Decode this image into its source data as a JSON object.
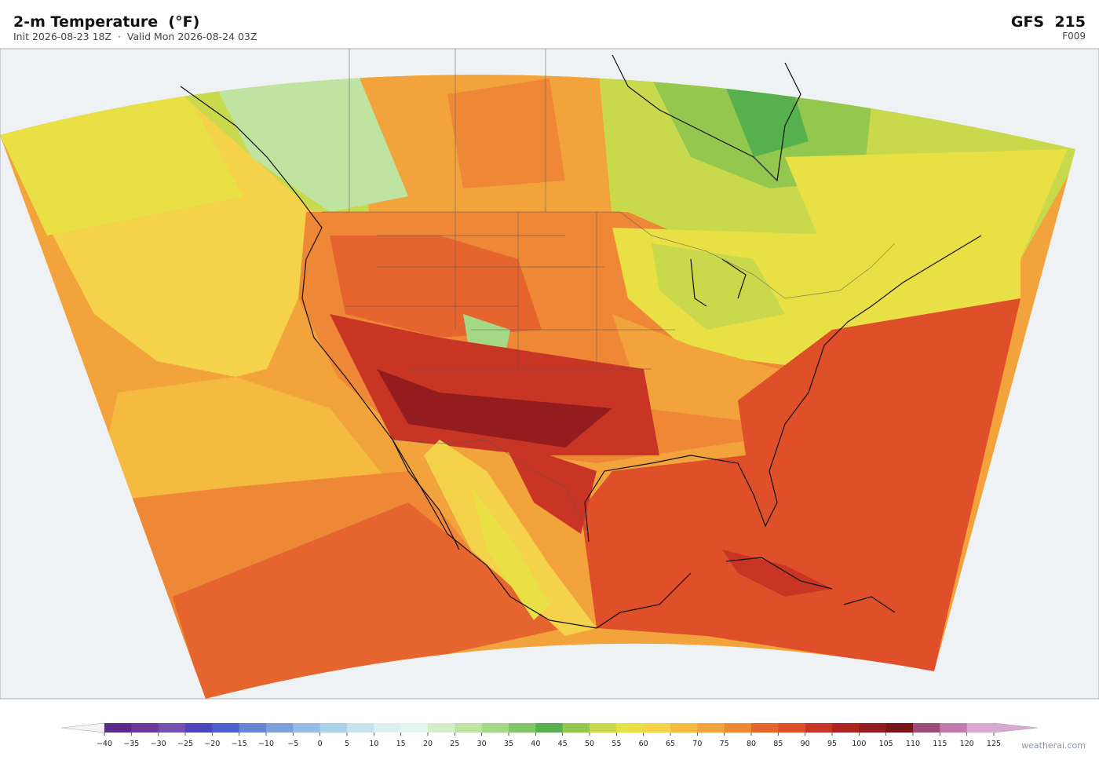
{
  "header": {
    "title": "2-m Temperature  (°F)",
    "subtitle": "Init 2026-08-23 18Z  ·  Valid Mon 2026-08-24 03Z",
    "model": "GFS  215",
    "forecast_hour": "F009"
  },
  "colorbar": {
    "ticks": [
      {
        "value": -40,
        "label": "−40"
      },
      {
        "value": -35,
        "label": "−35"
      },
      {
        "value": -30,
        "label": "−30"
      },
      {
        "value": -25,
        "label": "−25"
      },
      {
        "value": -20,
        "label": "−20"
      },
      {
        "value": -15,
        "label": "−15"
      },
      {
        "value": -10,
        "label": "−10"
      },
      {
        "value": -5,
        "label": "−5"
      },
      0,
      5,
      10,
      15,
      20,
      25,
      30,
      35,
      40,
      45,
      50,
      55,
      60,
      65,
      70,
      75,
      80,
      85,
      90,
      95,
      100,
      105,
      110,
      115,
      120,
      125
    ],
    "colors": [
      "#5b2a8a",
      "#6b3a9c",
      "#7650b0",
      "#4c46b8",
      "#4e60c9",
      "#6686d4",
      "#7ca1da",
      "#93bde3",
      "#aad2ea",
      "#c5e4f0",
      "#dbf0f3",
      "#e6f5ee",
      "#d3edc9",
      "#bfe4a1",
      "#a4d884",
      "#80c566",
      "#55b04d",
      "#94c74e",
      "#c9d94c",
      "#e8e045",
      "#f4d24a",
      "#f5bb41",
      "#f2a33c",
      "#ee8736",
      "#e6642e",
      "#de4f2a",
      "#c83524",
      "#ae2420",
      "#931c1e",
      "#7a1418",
      "#9e4a7a",
      "#c07ab0",
      "#d9a8d3"
    ]
  },
  "watermark": "weatherai.com"
}
